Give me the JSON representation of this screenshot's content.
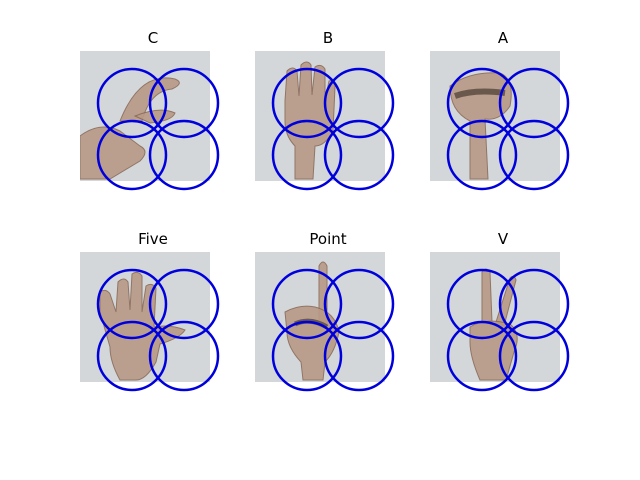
{
  "colors": {
    "circle": "#0000dd",
    "photo_bg": "#d9dcdd"
  },
  "panels": [
    {
      "label": "C",
      "gesture": "c"
    },
    {
      "label": "B",
      "gesture": "b"
    },
    {
      "label": "A",
      "gesture": "a"
    },
    {
      "label": "Five",
      "gesture": "five"
    },
    {
      "label": "Point",
      "gesture": "point"
    },
    {
      "label": "V",
      "gesture": "v"
    }
  ]
}
